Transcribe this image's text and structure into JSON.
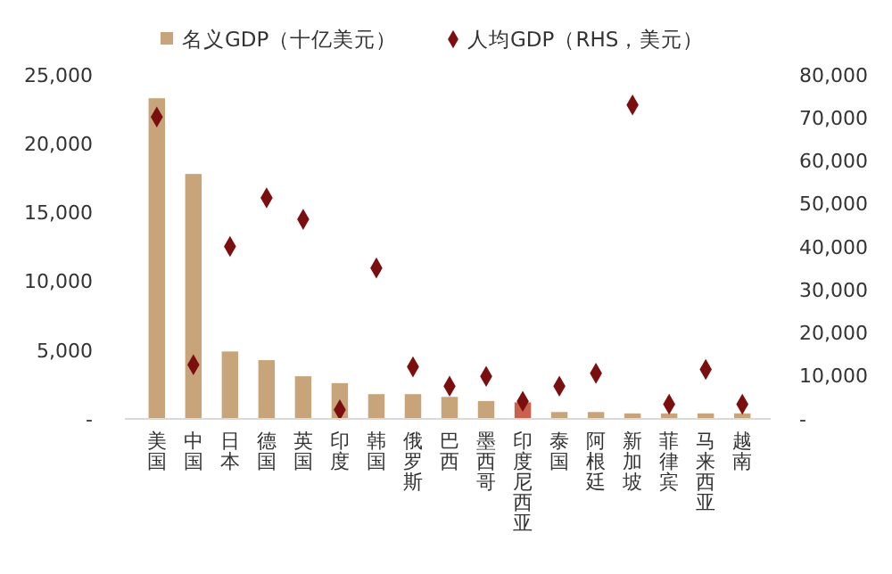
{
  "chart_data": {
    "type": "bar",
    "categories": [
      "美国",
      "中国",
      "日本",
      "德国",
      "英国",
      "印度",
      "韩国",
      "俄罗斯",
      "巴西",
      "墨西哥",
      "印度尼西亚",
      "泰国",
      "阿根廷",
      "新加坡",
      "菲律宾",
      "马来西亚",
      "越南"
    ],
    "series": [
      {
        "name": "名义GDP（十亿美元）",
        "color": "#c8a47a",
        "colors": [
          "#c8a47a",
          "#c8a47a",
          "#c8a47a",
          "#c8a47a",
          "#c8a47a",
          "#c8a47a",
          "#c8a47a",
          "#c8a47a",
          "#c8a47a",
          "#c8a47a",
          "#c8614d",
          "#c8a47a",
          "#c8a47a",
          "#c8a47a",
          "#c8a47a",
          "#c8a47a",
          "#c8a47a"
        ],
        "values": [
          23300,
          17800,
          4900,
          4270,
          3100,
          2600,
          1800,
          1800,
          1600,
          1300,
          1200,
          500,
          500,
          400,
          400,
          400,
          400
        ]
      },
      {
        "name": "人均GDP（RHS，美元）",
        "type": "scatter",
        "axis": "y2",
        "color": "#7b0f0f",
        "values": [
          70200,
          12600,
          40100,
          51400,
          46400,
          2100,
          35100,
          12100,
          7600,
          9900,
          4100,
          7600,
          10600,
          73000,
          3400,
          11500,
          3400
        ]
      }
    ],
    "ylim": [
      0,
      25000
    ],
    "yticks": [
      {
        "value": 0,
        "label": "-"
      },
      {
        "value": 5000,
        "label": "5,000"
      },
      {
        "value": 10000,
        "label": "10,000"
      },
      {
        "value": 15000,
        "label": "15,000"
      },
      {
        "value": 20000,
        "label": "20,000"
      },
      {
        "value": 25000,
        "label": "25,000"
      }
    ],
    "y2lim": [
      0,
      80000
    ],
    "y2ticks": [
      {
        "value": 0,
        "label": "-"
      },
      {
        "value": 10000,
        "label": "10,000"
      },
      {
        "value": 20000,
        "label": "20,000"
      },
      {
        "value": 30000,
        "label": "30,000"
      },
      {
        "value": 40000,
        "label": "40,000"
      },
      {
        "value": 50000,
        "label": "50,000"
      },
      {
        "value": 60000,
        "label": "60,000"
      },
      {
        "value": 70000,
        "label": "70,000"
      },
      {
        "value": 80000,
        "label": "80,000"
      }
    ],
    "marker": "diamond",
    "legend": "top",
    "grid": false
  }
}
